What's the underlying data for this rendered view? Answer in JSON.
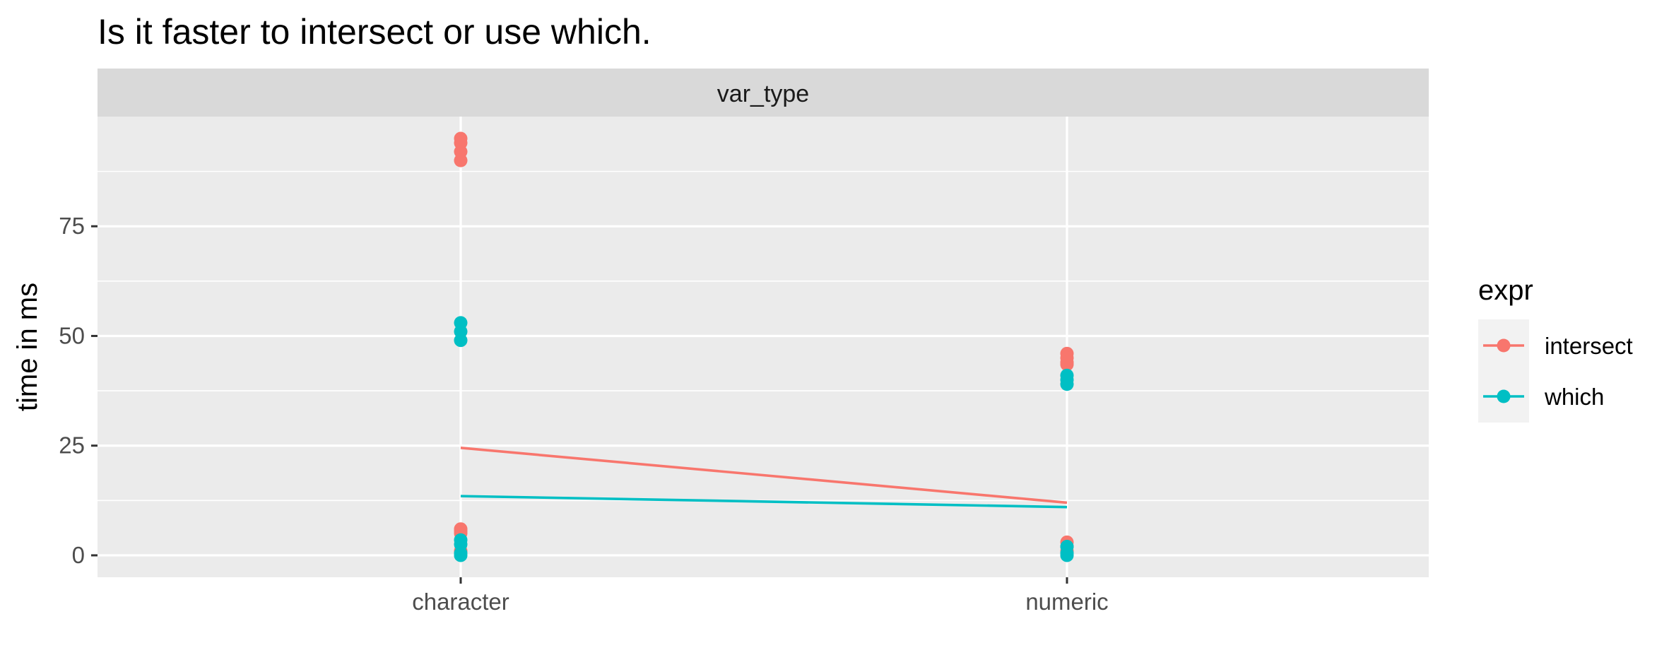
{
  "chart_data": {
    "type": "scatter",
    "title": "Is it faster to intersect or use which.",
    "facet_strip": "var_type",
    "xlabel": "",
    "ylabel": "time in ms",
    "categories": [
      "character",
      "numeric"
    ],
    "ylim": [
      -5,
      100
    ],
    "yticks": [
      0,
      25,
      50,
      75
    ],
    "grid": true,
    "legend": {
      "title": "expr",
      "position": "right",
      "entries": [
        "intersect",
        "which"
      ]
    },
    "series": [
      {
        "name": "intersect",
        "color": "#F8766D",
        "points": [
          {
            "x": "character",
            "y": [
              95,
              94,
              92,
              90,
              6,
              5.5,
              5,
              1
            ]
          },
          {
            "x": "numeric",
            "y": [
              46,
              45,
              44,
              43.5,
              3,
              2,
              1
            ]
          }
        ],
        "mean_line": [
          {
            "x": "character",
            "y": 24.5
          },
          {
            "x": "numeric",
            "y": 12
          }
        ]
      },
      {
        "name": "which",
        "color": "#00BFC4",
        "points": [
          {
            "x": "character",
            "y": [
              53,
              51,
              49,
              3.5,
              2.5,
              0.5,
              0
            ]
          },
          {
            "x": "numeric",
            "y": [
              41,
              40,
              39,
              2,
              0.5,
              0
            ]
          }
        ],
        "mean_line": [
          {
            "x": "character",
            "y": 13.5
          },
          {
            "x": "numeric",
            "y": 11
          }
        ]
      }
    ]
  }
}
